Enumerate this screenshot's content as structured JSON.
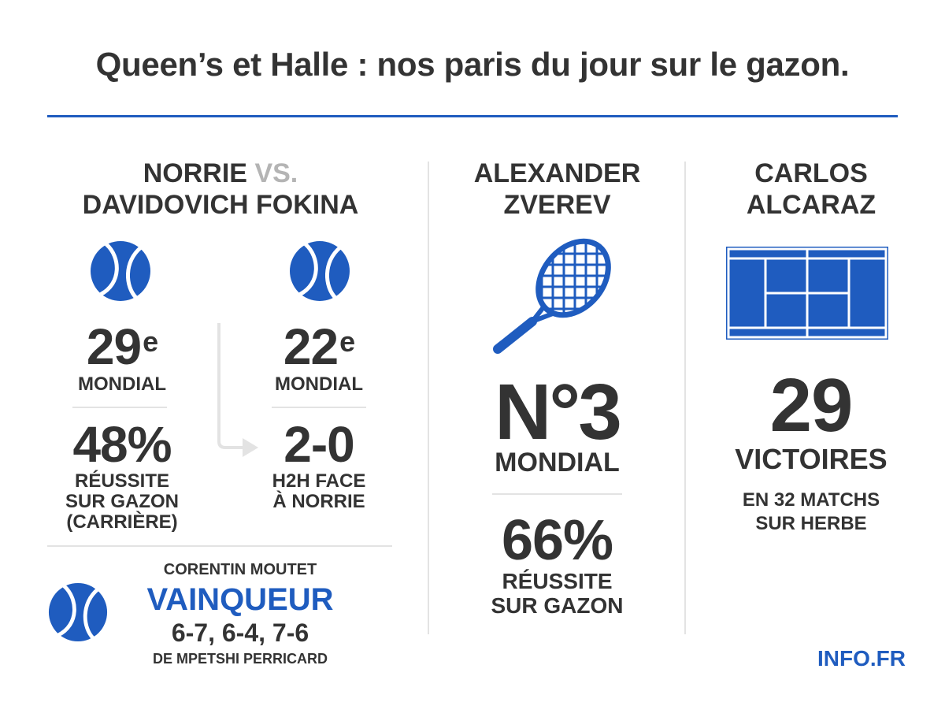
{
  "header": {
    "title": "Queen’s et Halle : nos paris du jour sur le gazon."
  },
  "match1": {
    "player_a": "NORRIE",
    "vs": "VS.",
    "player_b": "DAVIDOVICH FOKINA",
    "left": {
      "rank": "29",
      "rank_suffix": "e",
      "rank_label": "MONDIAL",
      "stat_value": "48%",
      "stat_line1": "RÉUSSITE",
      "stat_line2": "SUR GAZON",
      "stat_line3": "(CARRIÈRE)"
    },
    "right": {
      "rank": "22",
      "rank_suffix": "e",
      "rank_label": "MONDIAL",
      "stat_value": "2-0",
      "stat_line1": "H2H FACE",
      "stat_line2": "À NORRIE"
    }
  },
  "result": {
    "name": "CORENTIN MOUTET",
    "outcome": "VAINQUEUR",
    "score": "6-7, 6-4, 7-6",
    "opponent": "DE MPETSHI PERRICARD"
  },
  "zverev": {
    "name_line1": "ALEXANDER",
    "name_line2": "ZVEREV",
    "rank": "N°3",
    "rank_label": "MONDIAL",
    "stat_value": "66%",
    "stat_line1": "RÉUSSITE",
    "stat_line2": "SUR GAZON"
  },
  "alcaraz": {
    "name_line1": "CARLOS",
    "name_line2": "ALCARAZ",
    "wins": "29",
    "wins_label": "VICTOIRES",
    "detail_line1": "EN 32 MATCHS",
    "detail_line2": "SUR HERBE"
  },
  "footer": {
    "source": "INFO.FR"
  },
  "colors": {
    "accent": "#1f5cbf",
    "text": "#333333",
    "divider": "#e3e3e3",
    "muted": "#b4b4b4"
  },
  "icons": [
    "tennis-ball-icon",
    "tennis-racket-icon",
    "tennis-court-icon",
    "arrow-right-icon"
  ]
}
